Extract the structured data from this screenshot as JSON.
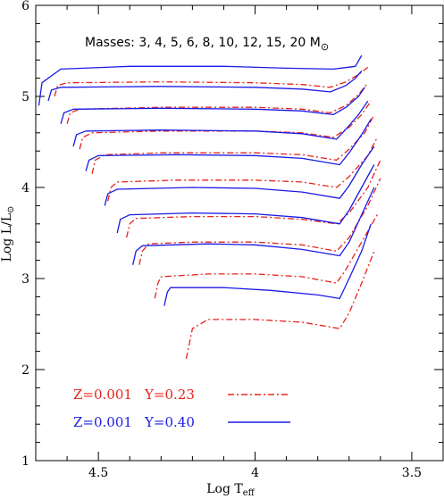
{
  "chart_data": {
    "type": "line",
    "title": "",
    "annotation": {
      "text": "Masses: 3, 4, 5, 6, 8, 10, 12, 15, 20 M",
      "symbol": "⊙"
    },
    "xlabel": "Log T",
    "xlabel_sub": "eff",
    "ylabel": "Log L/L",
    "ylabel_sub": "⊙",
    "xlim": [
      4.7,
      3.4
    ],
    "ylim": [
      1,
      6
    ],
    "x_reversed": true,
    "xticks": [
      "4.5",
      "4",
      "3.5"
    ],
    "yticks": [
      "1",
      "2",
      "3",
      "4",
      "5",
      "6"
    ],
    "grid": false,
    "legend_position": "bottom-left",
    "series": [
      {
        "name": "Z=0.001 Y=0.23",
        "label_z": "Z=0.001",
        "label_y": "Y=0.23",
        "color": "#e8231b",
        "dash": "dash-dot",
        "masses": [
          3,
          4,
          5,
          6,
          8,
          10,
          12,
          15,
          20
        ],
        "tracks": [
          [
            [
              4.22,
              2.12
            ],
            [
              4.21,
              2.28
            ],
            [
              4.2,
              2.45
            ],
            [
              4.15,
              2.55
            ],
            [
              4.0,
              2.55
            ],
            [
              3.85,
              2.52
            ],
            [
              3.73,
              2.45
            ],
            [
              3.7,
              2.62
            ],
            [
              3.66,
              2.95
            ],
            [
              3.62,
              3.3
            ]
          ],
          [
            [
              4.32,
              2.78
            ],
            [
              4.31,
              2.95
            ],
            [
              4.3,
              3.02
            ],
            [
              4.15,
              3.05
            ],
            [
              4.0,
              3.05
            ],
            [
              3.85,
              3.02
            ],
            [
              3.74,
              2.95
            ],
            [
              3.71,
              3.1
            ],
            [
              3.66,
              3.4
            ],
            [
              3.61,
              3.7
            ]
          ],
          [
            [
              4.37,
              3.15
            ],
            [
              4.36,
              3.3
            ],
            [
              4.34,
              3.38
            ],
            [
              4.2,
              3.4
            ],
            [
              4.0,
              3.4
            ],
            [
              3.85,
              3.37
            ],
            [
              3.74,
              3.3
            ],
            [
              3.7,
              3.45
            ],
            [
              3.64,
              3.8
            ],
            [
              3.6,
              4.1
            ]
          ],
          [
            [
              4.41,
              3.45
            ],
            [
              4.4,
              3.6
            ],
            [
              4.38,
              3.66
            ],
            [
              4.2,
              3.68
            ],
            [
              4.0,
              3.68
            ],
            [
              3.85,
              3.65
            ],
            [
              3.74,
              3.6
            ],
            [
              3.7,
              3.72
            ],
            [
              3.64,
              4.0
            ],
            [
              3.6,
              4.3
            ]
          ],
          [
            [
              4.47,
              3.85
            ],
            [
              4.46,
              4.0
            ],
            [
              4.44,
              4.06
            ],
            [
              4.25,
              4.08
            ],
            [
              4.0,
              4.08
            ],
            [
              3.85,
              4.06
            ],
            [
              3.74,
              4.0
            ],
            [
              3.7,
              4.12
            ],
            [
              3.64,
              4.35
            ],
            [
              3.61,
              4.55
            ]
          ],
          [
            [
              4.52,
              4.15
            ],
            [
              4.51,
              4.3
            ],
            [
              4.48,
              4.36
            ],
            [
              4.3,
              4.38
            ],
            [
              4.0,
              4.38
            ],
            [
              3.85,
              4.36
            ],
            [
              3.74,
              4.3
            ],
            [
              3.7,
              4.42
            ],
            [
              3.65,
              4.6
            ],
            [
              3.62,
              4.8
            ]
          ],
          [
            [
              4.56,
              4.42
            ],
            [
              4.55,
              4.55
            ],
            [
              4.52,
              4.6
            ],
            [
              4.3,
              4.62
            ],
            [
              4.0,
              4.62
            ],
            [
              3.85,
              4.6
            ],
            [
              3.75,
              4.55
            ],
            [
              3.7,
              4.66
            ],
            [
              3.66,
              4.8
            ],
            [
              3.63,
              4.95
            ]
          ],
          [
            [
              4.6,
              4.7
            ],
            [
              4.59,
              4.82
            ],
            [
              4.56,
              4.86
            ],
            [
              4.3,
              4.88
            ],
            [
              4.0,
              4.88
            ],
            [
              3.85,
              4.86
            ],
            [
              3.76,
              4.82
            ],
            [
              3.71,
              4.9
            ],
            [
              3.67,
              5.02
            ],
            [
              3.64,
              5.15
            ]
          ],
          [
            [
              4.64,
              5.0
            ],
            [
              4.63,
              5.12
            ],
            [
              4.6,
              5.15
            ],
            [
              4.3,
              5.16
            ],
            [
              4.0,
              5.15
            ],
            [
              3.85,
              5.13
            ],
            [
              3.76,
              5.1
            ],
            [
              3.71,
              5.16
            ],
            [
              3.67,
              5.24
            ],
            [
              3.64,
              5.32
            ]
          ]
        ]
      },
      {
        "name": "Z=0.001 Y=0.40",
        "label_z": "Z=0.001",
        "label_y": "Y=0.40",
        "color": "#1a1ae6",
        "dash": "solid",
        "masses": [
          3,
          4,
          5,
          6,
          8,
          10,
          12,
          15,
          20
        ],
        "tracks": [
          [
            [
              4.29,
              2.7
            ],
            [
              4.28,
              2.85
            ],
            [
              4.27,
              2.9
            ],
            [
              4.1,
              2.9
            ],
            [
              3.95,
              2.87
            ],
            [
              3.8,
              2.82
            ],
            [
              3.73,
              2.78
            ],
            [
              3.7,
              3.0
            ],
            [
              3.66,
              3.3
            ],
            [
              3.63,
              3.6
            ]
          ],
          [
            [
              4.39,
              3.15
            ],
            [
              4.38,
              3.3
            ],
            [
              4.36,
              3.36
            ],
            [
              4.15,
              3.38
            ],
            [
              4.0,
              3.37
            ],
            [
              3.85,
              3.32
            ],
            [
              3.73,
              3.25
            ],
            [
              3.7,
              3.4
            ],
            [
              3.66,
              3.7
            ],
            [
              3.62,
              4.0
            ]
          ],
          [
            [
              4.44,
              3.5
            ],
            [
              4.43,
              3.65
            ],
            [
              4.4,
              3.7
            ],
            [
              4.2,
              3.72
            ],
            [
              4.0,
              3.71
            ],
            [
              3.85,
              3.67
            ],
            [
              3.73,
              3.6
            ],
            [
              3.7,
              3.75
            ],
            [
              3.66,
              4.0
            ],
            [
              3.62,
              4.25
            ]
          ],
          [
            [
              4.48,
              3.8
            ],
            [
              4.47,
              3.93
            ],
            [
              4.44,
              3.98
            ],
            [
              4.2,
              4.0
            ],
            [
              4.0,
              3.99
            ],
            [
              3.85,
              3.95
            ],
            [
              3.73,
              3.88
            ],
            [
              3.7,
              4.02
            ],
            [
              3.66,
              4.25
            ],
            [
              3.62,
              4.45
            ]
          ],
          [
            [
              4.54,
              4.18
            ],
            [
              4.53,
              4.3
            ],
            [
              4.5,
              4.35
            ],
            [
              4.25,
              4.36
            ],
            [
              4.0,
              4.35
            ],
            [
              3.85,
              4.32
            ],
            [
              3.73,
              4.25
            ],
            [
              3.7,
              4.38
            ],
            [
              3.66,
              4.58
            ],
            [
              3.63,
              4.75
            ]
          ],
          [
            [
              4.58,
              4.45
            ],
            [
              4.57,
              4.58
            ],
            [
              4.54,
              4.62
            ],
            [
              4.3,
              4.63
            ],
            [
              4.0,
              4.62
            ],
            [
              3.85,
              4.59
            ],
            [
              3.74,
              4.53
            ],
            [
              3.71,
              4.64
            ],
            [
              3.67,
              4.8
            ],
            [
              3.64,
              4.95
            ]
          ],
          [
            [
              4.62,
              4.7
            ],
            [
              4.61,
              4.82
            ],
            [
              4.58,
              4.86
            ],
            [
              4.3,
              4.87
            ],
            [
              4.0,
              4.86
            ],
            [
              3.85,
              4.84
            ],
            [
              3.75,
              4.8
            ],
            [
              3.71,
              4.88
            ],
            [
              3.67,
              5.0
            ],
            [
              3.65,
              5.1
            ]
          ],
          [
            [
              4.66,
              4.95
            ],
            [
              4.65,
              5.07
            ],
            [
              4.62,
              5.1
            ],
            [
              4.3,
              5.11
            ],
            [
              4.0,
              5.1
            ],
            [
              3.85,
              5.08
            ],
            [
              3.76,
              5.05
            ],
            [
              3.71,
              5.12
            ],
            [
              3.68,
              5.2
            ],
            [
              3.66,
              5.28
            ]
          ],
          [
            [
              4.69,
              4.9
            ],
            [
              4.68,
              5.15
            ],
            [
              4.62,
              5.3
            ],
            [
              4.4,
              5.33
            ],
            [
              4.1,
              5.33
            ],
            [
              3.9,
              5.31
            ],
            [
              3.75,
              5.3
            ],
            [
              3.68,
              5.33
            ],
            [
              3.66,
              5.45
            ]
          ]
        ]
      }
    ]
  }
}
